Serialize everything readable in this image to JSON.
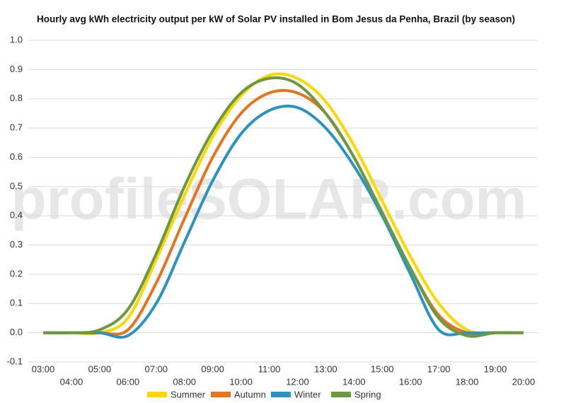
{
  "chart_data": {
    "type": "line",
    "title": "Hourly avg kWh electricity output per kW of Solar PV installed in Bom Jesus da Penha, Brazil (by season)",
    "watermark": "profileSOLAR.com",
    "categories": [
      "03:00",
      "04:00",
      "05:00",
      "06:00",
      "07:00",
      "08:00",
      "09:00",
      "10:00",
      "11:00",
      "12:00",
      "13:00",
      "14:00",
      "15:00",
      "16:00",
      "17:00",
      "18:00",
      "19:00",
      "20:00"
    ],
    "series": [
      {
        "name": "Summer",
        "color": "#ffd700",
        "values": [
          0,
          0,
          0,
          0.05,
          0.25,
          0.47,
          0.67,
          0.81,
          0.88,
          0.87,
          0.79,
          0.64,
          0.45,
          0.26,
          0.1,
          0.01,
          0,
          0
        ]
      },
      {
        "name": "Autumn",
        "color": "#e8731f",
        "values": [
          0,
          0,
          0,
          0.01,
          0.17,
          0.39,
          0.6,
          0.75,
          0.82,
          0.82,
          0.75,
          0.6,
          0.41,
          0.22,
          0.06,
          0,
          0,
          0
        ]
      },
      {
        "name": "Winter",
        "color": "#2b93c4",
        "values": [
          0,
          0,
          0,
          -0.01,
          0.1,
          0.31,
          0.52,
          0.68,
          0.76,
          0.77,
          0.7,
          0.57,
          0.4,
          0.2,
          0.01,
          0,
          0,
          0
        ]
      },
      {
        "name": "Spring",
        "color": "#6b9a3e",
        "values": [
          0,
          0,
          0.01,
          0.08,
          0.27,
          0.5,
          0.69,
          0.82,
          0.87,
          0.85,
          0.75,
          0.6,
          0.41,
          0.22,
          0.05,
          -0.01,
          0,
          0
        ]
      }
    ],
    "ylim": [
      -0.1,
      1.0
    ],
    "yticks": [
      -0.1,
      {
        "value": 0,
        "label": "0.0"
      },
      0.1,
      0.2,
      0.3,
      0.4,
      0.5,
      0.6,
      0.7,
      0.8,
      0.9,
      {
        "value": 1,
        "label": "1.0"
      }
    ],
    "grid": true,
    "legend": "bottom"
  }
}
